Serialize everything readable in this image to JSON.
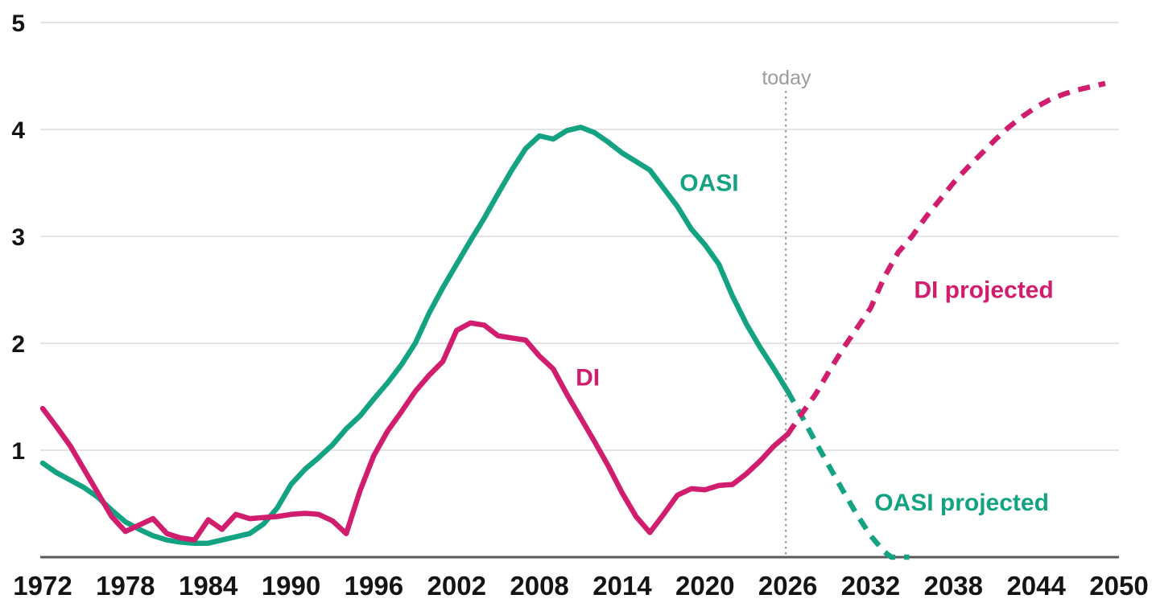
{
  "chart_data": {
    "type": "line",
    "title": "",
    "xlabel": "",
    "ylabel": "",
    "x_axis": {
      "ticks": [
        1972,
        1978,
        1984,
        1990,
        1996,
        2002,
        2008,
        2014,
        2020,
        2026,
        2032,
        2038,
        2044,
        2050
      ],
      "range": [
        1971.8,
        2050
      ]
    },
    "y_axis": {
      "ticks": [
        1,
        2,
        3,
        4,
        5
      ],
      "range": [
        0,
        5
      ],
      "gridlines": "horizontal"
    },
    "today_marker": {
      "label": "today",
      "year": 2026
    },
    "colors": {
      "oasi": "#14a382",
      "di": "#d11d6e",
      "today_line": "#9b9b9b",
      "gridline": "#dcdcdc",
      "axis_line": "#5a5a5a",
      "tick_text": "#141414"
    },
    "series": [
      {
        "name": "OASI",
        "style": "solid",
        "color": "#14a382",
        "points": [
          [
            1972,
            0.88
          ],
          [
            1973,
            0.79
          ],
          [
            1974,
            0.72
          ],
          [
            1975,
            0.65
          ],
          [
            1976,
            0.56
          ],
          [
            1977,
            0.44
          ],
          [
            1978,
            0.33
          ],
          [
            1979,
            0.26
          ],
          [
            1980,
            0.2
          ],
          [
            1981,
            0.16
          ],
          [
            1982,
            0.14
          ],
          [
            1983,
            0.13
          ],
          [
            1984,
            0.13
          ],
          [
            1985,
            0.16
          ],
          [
            1986,
            0.19
          ],
          [
            1987,
            0.22
          ],
          [
            1988,
            0.31
          ],
          [
            1989,
            0.46
          ],
          [
            1990,
            0.68
          ],
          [
            1991,
            0.82
          ],
          [
            1992,
            0.93
          ],
          [
            1993,
            1.05
          ],
          [
            1994,
            1.2
          ],
          [
            1995,
            1.32
          ],
          [
            1996,
            1.48
          ],
          [
            1997,
            1.63
          ],
          [
            1998,
            1.8
          ],
          [
            1999,
            2.0
          ],
          [
            2000,
            2.28
          ],
          [
            2001,
            2.52
          ],
          [
            2002,
            2.74
          ],
          [
            2003,
            2.96
          ],
          [
            2004,
            3.17
          ],
          [
            2005,
            3.4
          ],
          [
            2006,
            3.62
          ],
          [
            2007,
            3.82
          ],
          [
            2008,
            3.94
          ],
          [
            2009,
            3.91
          ],
          [
            2010,
            3.99
          ],
          [
            2011,
            4.02
          ],
          [
            2012,
            3.97
          ],
          [
            2013,
            3.88
          ],
          [
            2014,
            3.78
          ],
          [
            2015,
            3.7
          ],
          [
            2016,
            3.62
          ],
          [
            2017,
            3.45
          ],
          [
            2018,
            3.28
          ],
          [
            2019,
            3.07
          ],
          [
            2020,
            2.92
          ],
          [
            2021,
            2.74
          ],
          [
            2022,
            2.44
          ],
          [
            2023,
            2.18
          ],
          [
            2024,
            1.96
          ],
          [
            2025,
            1.76
          ],
          [
            2026,
            1.55
          ]
        ]
      },
      {
        "name": "OASI projected",
        "style": "dashed",
        "color": "#14a382",
        "points": [
          [
            2026,
            1.55
          ],
          [
            2027,
            1.32
          ],
          [
            2028,
            1.08
          ],
          [
            2029,
            0.85
          ],
          [
            2030,
            0.62
          ],
          [
            2031,
            0.4
          ],
          [
            2032,
            0.2
          ],
          [
            2033,
            0.05
          ],
          [
            2033.5,
            0.0
          ],
          [
            2034.8,
            0.0
          ]
        ]
      },
      {
        "name": "DI",
        "style": "solid",
        "color": "#d11d6e",
        "points": [
          [
            1972,
            1.39
          ],
          [
            1973,
            1.22
          ],
          [
            1974,
            1.04
          ],
          [
            1975,
            0.82
          ],
          [
            1976,
            0.6
          ],
          [
            1977,
            0.38
          ],
          [
            1978,
            0.24
          ],
          [
            1979,
            0.3
          ],
          [
            1980,
            0.36
          ],
          [
            1981,
            0.22
          ],
          [
            1982,
            0.18
          ],
          [
            1983,
            0.16
          ],
          [
            1984,
            0.35
          ],
          [
            1985,
            0.26
          ],
          [
            1986,
            0.4
          ],
          [
            1987,
            0.36
          ],
          [
            1988,
            0.37
          ],
          [
            1989,
            0.38
          ],
          [
            1990,
            0.4
          ],
          [
            1991,
            0.41
          ],
          [
            1992,
            0.4
          ],
          [
            1993,
            0.34
          ],
          [
            1994,
            0.22
          ],
          [
            1995,
            0.62
          ],
          [
            1996,
            0.95
          ],
          [
            1997,
            1.18
          ],
          [
            1998,
            1.36
          ],
          [
            1999,
            1.55
          ],
          [
            2000,
            1.7
          ],
          [
            2001,
            1.83
          ],
          [
            2002,
            2.12
          ],
          [
            2003,
            2.19
          ],
          [
            2004,
            2.17
          ],
          [
            2005,
            2.07
          ],
          [
            2006,
            2.05
          ],
          [
            2007,
            2.03
          ],
          [
            2008,
            1.88
          ],
          [
            2009,
            1.76
          ],
          [
            2010,
            1.52
          ],
          [
            2011,
            1.3
          ],
          [
            2012,
            1.08
          ],
          [
            2013,
            0.85
          ],
          [
            2014,
            0.6
          ],
          [
            2015,
            0.38
          ],
          [
            2016,
            0.23
          ],
          [
            2017,
            0.4
          ],
          [
            2018,
            0.58
          ],
          [
            2019,
            0.64
          ],
          [
            2020,
            0.63
          ],
          [
            2021,
            0.67
          ],
          [
            2022,
            0.68
          ],
          [
            2023,
            0.78
          ],
          [
            2024,
            0.9
          ],
          [
            2025,
            1.04
          ],
          [
            2026,
            1.15
          ]
        ]
      },
      {
        "name": "DI projected",
        "style": "dashed",
        "color": "#d11d6e",
        "points": [
          [
            2026,
            1.15
          ],
          [
            2027,
            1.34
          ],
          [
            2028,
            1.52
          ],
          [
            2029,
            1.74
          ],
          [
            2030,
            1.95
          ],
          [
            2031,
            2.14
          ],
          [
            2032,
            2.33
          ],
          [
            2033,
            2.62
          ],
          [
            2034,
            2.85
          ],
          [
            2035,
            3.0
          ],
          [
            2036,
            3.18
          ],
          [
            2037,
            3.34
          ],
          [
            2038,
            3.5
          ],
          [
            2039,
            3.64
          ],
          [
            2040,
            3.77
          ],
          [
            2041,
            3.9
          ],
          [
            2042,
            4.02
          ],
          [
            2043,
            4.12
          ],
          [
            2044,
            4.21
          ],
          [
            2045,
            4.28
          ],
          [
            2046,
            4.33
          ],
          [
            2047,
            4.37
          ],
          [
            2048,
            4.4
          ],
          [
            2049,
            4.43
          ]
        ]
      }
    ],
    "annotations": [
      {
        "text": "OASI",
        "year": 2020.3,
        "value": 3.5,
        "color": "#14a382"
      },
      {
        "text": "DI",
        "year": 2011.5,
        "value": 1.68,
        "color": "#d11d6e"
      },
      {
        "text": "DI projected",
        "year": 2040.2,
        "value": 2.5,
        "color": "#d11d6e"
      },
      {
        "text": "OASI projected",
        "year": 2038.6,
        "value": 0.51,
        "color": "#14a382"
      },
      {
        "text": "today",
        "year": 2025.9,
        "value": 4.49,
        "color": "#9b9b9b"
      }
    ]
  }
}
